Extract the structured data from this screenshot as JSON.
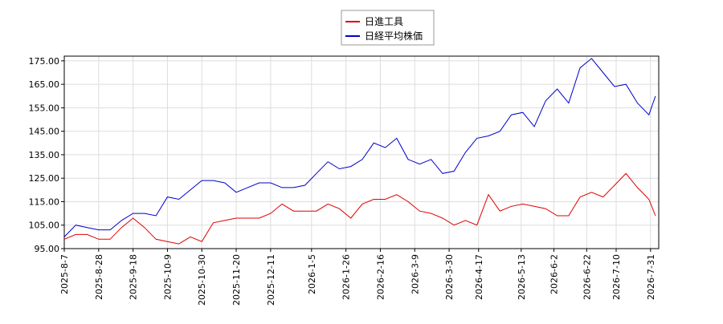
{
  "chart_data": {
    "type": "line",
    "x": [
      "2025-8-7",
      "2025-8-14",
      "2025-8-21",
      "2025-8-28",
      "2025-9-4",
      "2025-9-11",
      "2025-9-18",
      "2025-9-25",
      "2025-10-2",
      "2025-10-9",
      "2025-10-16",
      "2025-10-23",
      "2025-10-30",
      "2025-11-6",
      "2025-11-13",
      "2025-11-20",
      "2025-11-27",
      "2025-12-4",
      "2025-12-11",
      "2025-12-18",
      "2025-12-25",
      "2026-1-1",
      "2026-1-8",
      "2026-1-15",
      "2026-1-22",
      "2026-1-29",
      "2026-2-5",
      "2026-2-12",
      "2026-2-19",
      "2026-2-26",
      "2026-3-5",
      "2026-3-12",
      "2026-3-19",
      "2026-3-26",
      "2026-4-2",
      "2026-4-9",
      "2026-4-16",
      "2026-4-23",
      "2026-4-30",
      "2026-5-7",
      "2026-5-14",
      "2026-5-21",
      "2026-5-28",
      "2026-6-4",
      "2026-6-11",
      "2026-6-18",
      "2026-6-25",
      "2026-7-2",
      "2026-7-9",
      "2026-7-16",
      "2026-7-23",
      "2026-7-30",
      "2026-8-3"
    ],
    "series": [
      {
        "name": "日進工具",
        "color": "#dd0000",
        "values": [
          99,
          101,
          101,
          99,
          99,
          104,
          108,
          104,
          99,
          98,
          97,
          100,
          98,
          106,
          107,
          108,
          108,
          108,
          110,
          114,
          111,
          111,
          111,
          114,
          112,
          108,
          114,
          116,
          116,
          118,
          115,
          111,
          110,
          108,
          105,
          107,
          105,
          118,
          111,
          113,
          114,
          113,
          112,
          109,
          109,
          117,
          119,
          117,
          122,
          127,
          121,
          116,
          109
        ]
      },
      {
        "name": "日経平均株価",
        "color": "#0000cc",
        "values": [
          100,
          105,
          104,
          103,
          103,
          107,
          110,
          110,
          109,
          117,
          116,
          120,
          124,
          124,
          123,
          119,
          121,
          123,
          123,
          121,
          121,
          122,
          127,
          132,
          129,
          130,
          133,
          140,
          138,
          142,
          133,
          131,
          133,
          127,
          128,
          136,
          142,
          143,
          145,
          152,
          153,
          147,
          158,
          163,
          157,
          172,
          176,
          170,
          164,
          165,
          157,
          152,
          160
        ]
      }
    ],
    "xlim": [
      "2025-8-7",
      "2026-8-5"
    ],
    "xticks": [
      "2025-8-7",
      "2025-8-28",
      "2025-9-18",
      "2025-10-9",
      "2025-10-30",
      "2025-11-20",
      "2025-12-11",
      "2026-1-5",
      "2026-1-26",
      "2026-2-16",
      "2026-3-9",
      "2026-3-30",
      "2026-4-17",
      "2026-5-13",
      "2026-6-2",
      "2026-6-22",
      "2026-7-10",
      "2026-7-31"
    ],
    "ylim": [
      95,
      177
    ],
    "yticks": [
      {
        "value": 95,
        "label": "95.00"
      },
      {
        "value": 105,
        "label": "105.00"
      },
      {
        "value": 115,
        "label": "115.00"
      },
      {
        "value": 125,
        "label": "125.00"
      },
      {
        "value": 135,
        "label": "135.00"
      },
      {
        "value": 145,
        "label": "145.00"
      },
      {
        "value": 155,
        "label": "155.00"
      },
      {
        "value": 165,
        "label": "165.00"
      },
      {
        "value": 175,
        "label": "175.00"
      }
    ],
    "grid": true
  }
}
